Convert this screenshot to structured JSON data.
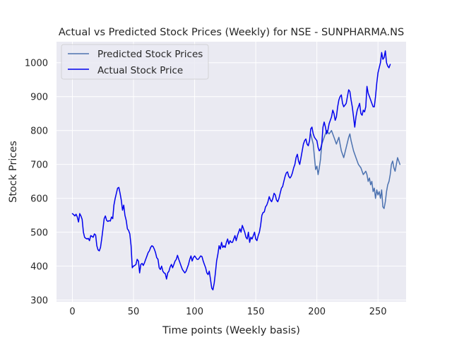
{
  "chart_data": {
    "type": "line",
    "title": "Actual vs Predicted Stock Prices (Weekly) for NSE - SUNPHARMA.NS",
    "xlabel": "Time points (Weekly basis)",
    "ylabel": "Stock Prices",
    "xlim": [
      -13,
      273
    ],
    "ylim": [
      295,
      1062
    ],
    "xticks": [
      0,
      50,
      100,
      150,
      200,
      250
    ],
    "yticks": [
      300,
      400,
      500,
      600,
      700,
      800,
      900,
      1000
    ],
    "grid": true,
    "legend_position": "top-left",
    "colors": {
      "background": "#eaeaf2",
      "grid": "#ffffff",
      "predicted": "#4c72b0",
      "actual": "#0000ee",
      "text": "#262626"
    },
    "series": [
      {
        "name": "Predicted Stock Prices",
        "color": "#4c72b0",
        "points": [
          [
            195,
            790
          ],
          [
            197,
            760
          ],
          [
            199,
            685
          ],
          [
            200,
            695
          ],
          [
            201,
            670
          ],
          [
            202,
            690
          ],
          [
            203,
            715
          ],
          [
            204,
            760
          ],
          [
            206,
            780
          ],
          [
            208,
            800
          ],
          [
            209,
            795
          ],
          [
            210,
            790
          ],
          [
            212,
            800
          ],
          [
            214,
            780
          ],
          [
            216,
            760
          ],
          [
            218,
            780
          ],
          [
            219,
            760
          ],
          [
            220,
            740
          ],
          [
            222,
            720
          ],
          [
            224,
            750
          ],
          [
            226,
            780
          ],
          [
            227,
            790
          ],
          [
            228,
            770
          ],
          [
            230,
            740
          ],
          [
            232,
            720
          ],
          [
            234,
            700
          ],
          [
            236,
            690
          ],
          [
            238,
            670
          ],
          [
            240,
            680
          ],
          [
            241,
            670
          ],
          [
            242,
            650
          ],
          [
            243,
            660
          ],
          [
            244,
            640
          ],
          [
            245,
            650
          ],
          [
            246,
            620
          ],
          [
            247,
            630
          ],
          [
            248,
            600
          ],
          [
            249,
            625
          ],
          [
            250,
            610
          ],
          [
            251,
            620
          ],
          [
            252,
            600
          ],
          [
            253,
            625
          ],
          [
            254,
            575
          ],
          [
            255,
            570
          ],
          [
            256,
            590
          ],
          [
            257,
            620
          ],
          [
            258,
            640
          ],
          [
            259,
            650
          ],
          [
            260,
            670
          ],
          [
            261,
            700
          ],
          [
            262,
            710
          ],
          [
            263,
            690
          ],
          [
            264,
            680
          ],
          [
            265,
            700
          ],
          [
            266,
            720
          ],
          [
            267,
            710
          ],
          [
            268,
            700
          ]
        ]
      },
      {
        "name": "Actual Stock Price",
        "color": "#0000ee",
        "points": [
          [
            0,
            555
          ],
          [
            1,
            552
          ],
          [
            2,
            548
          ],
          [
            3,
            553
          ],
          [
            4,
            545
          ],
          [
            5,
            530
          ],
          [
            6,
            555
          ],
          [
            7,
            548
          ],
          [
            8,
            538
          ],
          [
            9,
            500
          ],
          [
            10,
            485
          ],
          [
            11,
            482
          ],
          [
            12,
            480
          ],
          [
            13,
            482
          ],
          [
            14,
            475
          ],
          [
            15,
            490
          ],
          [
            16,
            488
          ],
          [
            17,
            485
          ],
          [
            18,
            495
          ],
          [
            19,
            492
          ],
          [
            20,
            460
          ],
          [
            21,
            448
          ],
          [
            22,
            445
          ],
          [
            23,
            455
          ],
          [
            24,
            480
          ],
          [
            25,
            510
          ],
          [
            26,
            540
          ],
          [
            27,
            548
          ],
          [
            28,
            535
          ],
          [
            29,
            532
          ],
          [
            30,
            534
          ],
          [
            31,
            533
          ],
          [
            32,
            545
          ],
          [
            33,
            540
          ],
          [
            34,
            580
          ],
          [
            35,
            600
          ],
          [
            36,
            615
          ],
          [
            37,
            630
          ],
          [
            38,
            632
          ],
          [
            39,
            615
          ],
          [
            40,
            595
          ],
          [
            41,
            565
          ],
          [
            42,
            580
          ],
          [
            43,
            550
          ],
          [
            44,
            535
          ],
          [
            45,
            510
          ],
          [
            46,
            505
          ],
          [
            47,
            495
          ],
          [
            48,
            460
          ],
          [
            49,
            395
          ],
          [
            50,
            400
          ],
          [
            51,
            402
          ],
          [
            52,
            405
          ],
          [
            53,
            420
          ],
          [
            54,
            415
          ],
          [
            55,
            380
          ],
          [
            56,
            405
          ],
          [
            57,
            408
          ],
          [
            58,
            402
          ],
          [
            59,
            410
          ],
          [
            60,
            420
          ],
          [
            61,
            430
          ],
          [
            62,
            440
          ],
          [
            63,
            445
          ],
          [
            64,
            455
          ],
          [
            65,
            460
          ],
          [
            66,
            458
          ],
          [
            67,
            450
          ],
          [
            68,
            440
          ],
          [
            69,
            425
          ],
          [
            70,
            420
          ],
          [
            71,
            395
          ],
          [
            72,
            390
          ],
          [
            73,
            400
          ],
          [
            74,
            385
          ],
          [
            75,
            380
          ],
          [
            76,
            378
          ],
          [
            77,
            362
          ],
          [
            78,
            380
          ],
          [
            79,
            385
          ],
          [
            80,
            398
          ],
          [
            81,
            405
          ],
          [
            82,
            395
          ],
          [
            83,
            405
          ],
          [
            84,
            415
          ],
          [
            85,
            420
          ],
          [
            86,
            432
          ],
          [
            87,
            420
          ],
          [
            88,
            410
          ],
          [
            89,
            400
          ],
          [
            90,
            390
          ],
          [
            91,
            385
          ],
          [
            92,
            380
          ],
          [
            93,
            385
          ],
          [
            94,
            395
          ],
          [
            95,
            405
          ],
          [
            96,
            420
          ],
          [
            97,
            430
          ],
          [
            98,
            415
          ],
          [
            99,
            425
          ],
          [
            100,
            430
          ],
          [
            101,
            425
          ],
          [
            102,
            420
          ],
          [
            103,
            420
          ],
          [
            104,
            425
          ],
          [
            105,
            430
          ],
          [
            106,
            428
          ],
          [
            107,
            415
          ],
          [
            108,
            405
          ],
          [
            109,
            395
          ],
          [
            110,
            380
          ],
          [
            111,
            375
          ],
          [
            112,
            385
          ],
          [
            113,
            360
          ],
          [
            114,
            335
          ],
          [
            115,
            330
          ],
          [
            116,
            350
          ],
          [
            117,
            380
          ],
          [
            118,
            415
          ],
          [
            119,
            435
          ],
          [
            120,
            460
          ],
          [
            121,
            450
          ],
          [
            122,
            470
          ],
          [
            123,
            455
          ],
          [
            124,
            460
          ],
          [
            125,
            455
          ],
          [
            126,
            470
          ],
          [
            127,
            480
          ],
          [
            128,
            465
          ],
          [
            129,
            475
          ],
          [
            130,
            470
          ],
          [
            131,
            470
          ],
          [
            132,
            480
          ],
          [
            133,
            490
          ],
          [
            134,
            475
          ],
          [
            135,
            490
          ],
          [
            136,
            500
          ],
          [
            137,
            510
          ],
          [
            138,
            500
          ],
          [
            139,
            520
          ],
          [
            140,
            510
          ],
          [
            141,
            500
          ],
          [
            142,
            485
          ],
          [
            143,
            480
          ],
          [
            144,
            500
          ],
          [
            145,
            470
          ],
          [
            146,
            485
          ],
          [
            147,
            480
          ],
          [
            148,
            490
          ],
          [
            149,
            500
          ],
          [
            150,
            480
          ],
          [
            151,
            475
          ],
          [
            152,
            490
          ],
          [
            153,
            500
          ],
          [
            154,
            520
          ],
          [
            155,
            550
          ],
          [
            156,
            558
          ],
          [
            157,
            560
          ],
          [
            158,
            575
          ],
          [
            159,
            580
          ],
          [
            160,
            590
          ],
          [
            161,
            605
          ],
          [
            162,
            595
          ],
          [
            163,
            590
          ],
          [
            164,
            600
          ],
          [
            165,
            615
          ],
          [
            166,
            610
          ],
          [
            167,
            595
          ],
          [
            168,
            590
          ],
          [
            169,
            600
          ],
          [
            170,
            615
          ],
          [
            171,
            630
          ],
          [
            172,
            635
          ],
          [
            173,
            650
          ],
          [
            174,
            665
          ],
          [
            175,
            675
          ],
          [
            176,
            678
          ],
          [
            177,
            665
          ],
          [
            178,
            660
          ],
          [
            179,
            665
          ],
          [
            180,
            675
          ],
          [
            181,
            690
          ],
          [
            182,
            700
          ],
          [
            183,
            720
          ],
          [
            184,
            730
          ],
          [
            185,
            710
          ],
          [
            186,
            700
          ],
          [
            187,
            720
          ],
          [
            188,
            740
          ],
          [
            189,
            760
          ],
          [
            190,
            770
          ],
          [
            191,
            775
          ],
          [
            192,
            760
          ],
          [
            193,
            755
          ],
          [
            194,
            770
          ],
          [
            195,
            805
          ],
          [
            196,
            810
          ],
          [
            197,
            790
          ],
          [
            198,
            780
          ],
          [
            199,
            775
          ],
          [
            200,
            770
          ],
          [
            201,
            750
          ],
          [
            202,
            740
          ],
          [
            203,
            745
          ],
          [
            204,
            760
          ],
          [
            205,
            810
          ],
          [
            206,
            825
          ],
          [
            207,
            810
          ],
          [
            208,
            790
          ],
          [
            209,
            800
          ],
          [
            210,
            820
          ],
          [
            211,
            830
          ],
          [
            212,
            840
          ],
          [
            213,
            860
          ],
          [
            214,
            850
          ],
          [
            215,
            830
          ],
          [
            216,
            840
          ],
          [
            217,
            870
          ],
          [
            218,
            890
          ],
          [
            219,
            900
          ],
          [
            220,
            905
          ],
          [
            221,
            880
          ],
          [
            222,
            870
          ],
          [
            223,
            875
          ],
          [
            224,
            880
          ],
          [
            225,
            900
          ],
          [
            226,
            920
          ],
          [
            227,
            915
          ],
          [
            228,
            890
          ],
          [
            229,
            870
          ],
          [
            230,
            840
          ],
          [
            231,
            810
          ],
          [
            232,
            840
          ],
          [
            233,
            860
          ],
          [
            234,
            870
          ],
          [
            235,
            880
          ],
          [
            236,
            850
          ],
          [
            237,
            845
          ],
          [
            238,
            860
          ],
          [
            239,
            855
          ],
          [
            240,
            870
          ],
          [
            241,
            930
          ],
          [
            242,
            910
          ],
          [
            243,
            900
          ],
          [
            244,
            890
          ],
          [
            245,
            880
          ],
          [
            246,
            870
          ],
          [
            247,
            870
          ],
          [
            248,
            900
          ],
          [
            249,
            940
          ],
          [
            250,
            970
          ],
          [
            251,
            985
          ],
          [
            252,
            1000
          ],
          [
            253,
            1030
          ],
          [
            254,
            1010
          ],
          [
            255,
            1015
          ],
          [
            256,
            1035
          ],
          [
            257,
            1000
          ],
          [
            258,
            990
          ],
          [
            259,
            985
          ],
          [
            260,
            995
          ]
        ]
      }
    ]
  }
}
